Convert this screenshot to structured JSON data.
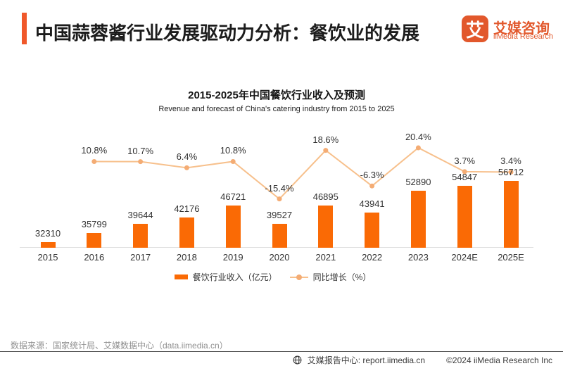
{
  "header": {
    "title": "中国蒜蓉酱行业发展驱动力分析：餐饮业的发展",
    "logo": {
      "mark": "艾",
      "name_cn": "艾媒咨询",
      "name_en": "iiMedia Research"
    }
  },
  "chart_data": {
    "type": "bar",
    "title": "2015-2025年中国餐饮行业收入及预测",
    "subtitle": "Revenue and forecast of China's catering industry from 2015 to 2025",
    "categories": [
      "2015",
      "2016",
      "2017",
      "2018",
      "2019",
      "2020",
      "2021",
      "2022",
      "2023",
      "2024E",
      "2025E"
    ],
    "series": [
      {
        "name": "餐饮行业收入（亿元）",
        "type": "bar",
        "values": [
          32310,
          35799,
          39644,
          42176,
          46721,
          39527,
          46895,
          43941,
          52890,
          54847,
          56712
        ]
      },
      {
        "name": "同比增长（%）",
        "type": "line",
        "values": [
          null,
          10.8,
          10.7,
          6.4,
          10.8,
          -15.4,
          18.6,
          -6.3,
          20.4,
          3.7,
          3.4
        ],
        "display": [
          null,
          "10.8%",
          "10.7%",
          "6.4%",
          "10.8%",
          "-15.4%",
          "18.6%",
          "-6.3%",
          "20.4%",
          "3.7%",
          "3.4%"
        ]
      }
    ],
    "bar_axis": {
      "min": 30000,
      "max": 58000
    },
    "grid": "off",
    "legend_position": "bottom",
    "data_labels": "on"
  },
  "source": "数据来源：国家统计局、艾媒数据中心（data.iimedia.cn）",
  "footer": {
    "report_center": "艾媒报告中心: report.iimedia.cn",
    "copyright": "©2024 iiMedia Research Inc"
  },
  "colors": {
    "bar": "#FA6A05",
    "line": "#F7C08C",
    "marker": "#F4AC74",
    "accent": "#F0582A",
    "brand": "#E2582C",
    "axis": "#DEDEDE"
  }
}
